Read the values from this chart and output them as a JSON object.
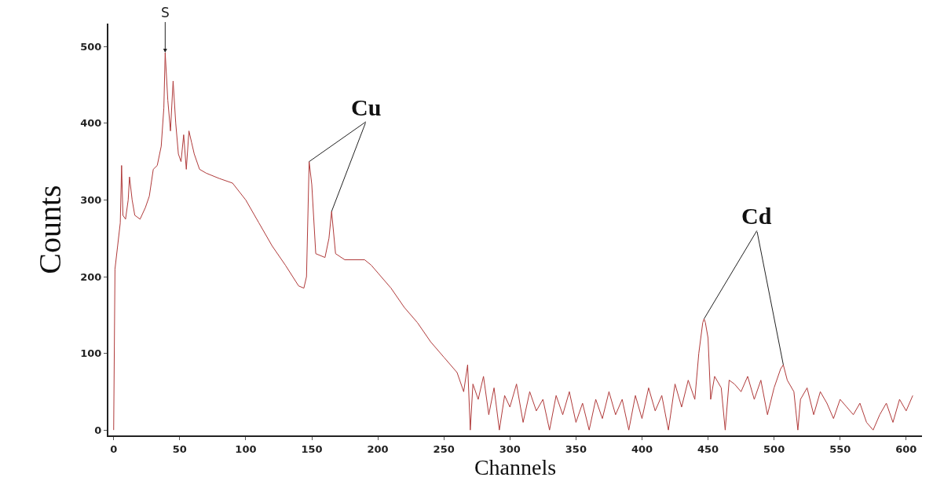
{
  "chart_data": {
    "type": "line",
    "xlabel": "Channels",
    "ylabel": "Counts",
    "xlim": [
      -4,
      612
    ],
    "ylim": [
      -7,
      530
    ],
    "xticks": [
      0,
      50,
      100,
      150,
      200,
      250,
      300,
      350,
      400,
      450,
      500,
      550,
      600
    ],
    "yticks": [
      0,
      100,
      200,
      300,
      400,
      500
    ],
    "grid": false,
    "marker": "none",
    "line_style": "solid",
    "annotations": [
      {
        "text": "S",
        "x": 39,
        "y": 492
      },
      {
        "text": "Cu",
        "x": 148,
        "y": 350
      },
      {
        "text": "Cd",
        "x": 447,
        "y": 145
      }
    ],
    "series": [
      {
        "color": "#b03a3a",
        "x": [
          0,
          1,
          3,
          5,
          6,
          7,
          9,
          11,
          12,
          14,
          16,
          20,
          24,
          27,
          30,
          33,
          36,
          38,
          39,
          41,
          43,
          45,
          47,
          49,
          51,
          53,
          55,
          57,
          59,
          61,
          65,
          70,
          80,
          90,
          100,
          110,
          120,
          130,
          140,
          144,
          146,
          148,
          150,
          153,
          160,
          163,
          165,
          168,
          175,
          190,
          195,
          200,
          210,
          220,
          230,
          240,
          250,
          260,
          265,
          268,
          270,
          272,
          276,
          280,
          284,
          288,
          292,
          296,
          300,
          305,
          310,
          315,
          320,
          325,
          330,
          335,
          340,
          345,
          350,
          355,
          360,
          365,
          370,
          375,
          380,
          385,
          390,
          395,
          400,
          405,
          410,
          415,
          420,
          425,
          430,
          435,
          440,
          443,
          446,
          447,
          448,
          450,
          452,
          455,
          460,
          463,
          466,
          470,
          475,
          480,
          485,
          490,
          495,
          500,
          505,
          507,
          510,
          515,
          518,
          520,
          525,
          530,
          535,
          540,
          545,
          550,
          555,
          560,
          565,
          570,
          575,
          580,
          585,
          590,
          595,
          600,
          605
        ],
        "values": [
          0,
          210,
          240,
          270,
          345,
          280,
          275,
          300,
          330,
          300,
          280,
          275,
          290,
          305,
          340,
          345,
          370,
          420,
          492,
          430,
          390,
          455,
          400,
          360,
          350,
          385,
          340,
          390,
          375,
          360,
          340,
          335,
          328,
          322,
          300,
          270,
          240,
          215,
          188,
          185,
          200,
          350,
          320,
          230,
          225,
          250,
          285,
          230,
          222,
          222,
          215,
          205,
          185,
          160,
          140,
          115,
          95,
          75,
          50,
          85,
          0,
          60,
          40,
          70,
          20,
          55,
          0,
          45,
          30,
          60,
          10,
          50,
          25,
          40,
          0,
          45,
          20,
          50,
          10,
          35,
          0,
          40,
          15,
          50,
          20,
          40,
          0,
          45,
          15,
          55,
          25,
          45,
          0,
          60,
          30,
          65,
          40,
          100,
          140,
          145,
          140,
          120,
          40,
          70,
          55,
          0,
          65,
          60,
          50,
          70,
          40,
          65,
          20,
          55,
          80,
          85,
          65,
          50,
          0,
          40,
          55,
          20,
          50,
          35,
          15,
          40,
          30,
          20,
          35,
          10,
          0,
          20,
          35,
          10,
          40,
          25,
          45
        ]
      }
    ]
  }
}
